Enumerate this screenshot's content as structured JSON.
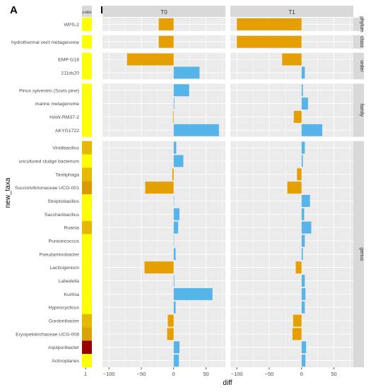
{
  "chart_data": {
    "type": "bar",
    "orientation": "horizontal",
    "panel_letters": [
      "A",
      "B"
    ],
    "pvalue_header": "p-value",
    "pvalue_tick": "1",
    "ylabel": "new_taxa",
    "xlabel": "diff",
    "xlim": [
      -110,
      80
    ],
    "xticks": [
      -100,
      -50,
      0,
      50
    ],
    "xtick_labels": [
      "−100",
      "−50",
      "0",
      "50"
    ],
    "columns": [
      "T0",
      "T1"
    ],
    "colors": {
      "positive": "#56b4e9",
      "negative": "#e69f00",
      "panel_bg": "#ebebeb",
      "strip_bg": "#d9d9d9",
      "grid": "#ffffff"
    },
    "facets": [
      {
        "level": "phylum",
        "taxa": [
          {
            "name": "WPS-2",
            "pvalue_color": "#ffff00",
            "T0": -23,
            "T1": -100
          }
        ]
      },
      {
        "level": "class",
        "taxa": [
          {
            "name": "hydrothermal vent metagenome",
            "pvalue_color": "#ffff00",
            "T0": -23,
            "T1": -100
          }
        ]
      },
      {
        "level": "order",
        "taxa": [
          {
            "name": "EMP-G18",
            "pvalue_color": "#ffff00",
            "T0": -72,
            "T1": -30
          },
          {
            "name": "211ds20",
            "pvalue_color": "#ffff00",
            "T0": 40,
            "T1": 5
          }
        ]
      },
      {
        "level": "family",
        "taxa": [
          {
            "name": "Pinus sylvestris (Scots pine)",
            "pvalue_color": "#ffff00",
            "T0": 24,
            "T1": 2
          },
          {
            "name": "marine metagenome",
            "pvalue_color": "#ffff00",
            "T0": 1,
            "T1": 10
          },
          {
            "name": "HAW-RM37-2",
            "pvalue_color": "#ffff00",
            "T0": -1,
            "T1": -12
          },
          {
            "name": "AKYG1722",
            "pvalue_color": "#ffff00",
            "T0": 70,
            "T1": 32
          }
        ]
      },
      {
        "level": "genus",
        "taxa": [
          {
            "name": "Viridibacillus",
            "pvalue_color": "#e6b800",
            "T0": 4,
            "T1": 5
          },
          {
            "name": "uncultured sludge bacterium",
            "pvalue_color": "#ffff00",
            "T0": 15,
            "T1": 2
          },
          {
            "name": "Tardiphaga",
            "pvalue_color": "#e6b800",
            "T0": -2,
            "T1": -7
          },
          {
            "name": "Succinivibrionaceae UCG-001",
            "pvalue_color": "#d99a00",
            "T0": -44,
            "T1": -22
          },
          {
            "name": "Streptobacillus",
            "pvalue_color": "#ffff00",
            "T0": 0,
            "T1": 13
          },
          {
            "name": "Saccharibacillus",
            "pvalue_color": "#ffff00",
            "T0": 9,
            "T1": 4
          },
          {
            "name": "Ruania",
            "pvalue_color": "#e6b800",
            "T0": 7,
            "T1": 15
          },
          {
            "name": "Puniceicoccus",
            "pvalue_color": "#ffff00",
            "T0": 0.5,
            "T1": 5
          },
          {
            "name": "Pseudaminobacter",
            "pvalue_color": "#ffff00",
            "T0": 3,
            "T1": 2
          },
          {
            "name": "Lacticigenium",
            "pvalue_color": "#ffff00",
            "T0": -45,
            "T1": -9
          },
          {
            "name": "Labedella",
            "pvalue_color": "#ffff00",
            "T0": 1,
            "T1": 5
          },
          {
            "name": "Kurthia",
            "pvalue_color": "#ffff00",
            "T0": 60,
            "T1": 6
          },
          {
            "name": "Hypnocyclicus",
            "pvalue_color": "#ffff00",
            "T0": 3,
            "T1": 5
          },
          {
            "name": "Gordonibacter",
            "pvalue_color": "#e6b800",
            "T0": -9,
            "T1": -13
          },
          {
            "name": "Erysipelotrichaceae UCG-008",
            "pvalue_color": "#d9a400",
            "T0": -10,
            "T1": -14
          },
          {
            "name": "Aquipuribacter",
            "pvalue_color": "#990000",
            "T0": 9,
            "T1": 7
          },
          {
            "name": "Actinoplanes",
            "pvalue_color": "#ffff00",
            "T0": 8,
            "T1": 6
          }
        ]
      }
    ]
  }
}
